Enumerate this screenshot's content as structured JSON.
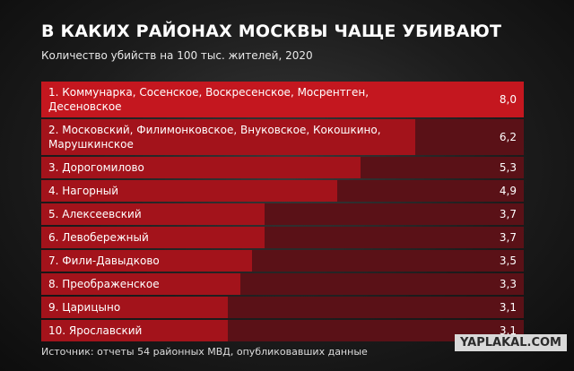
{
  "chart_data": {
    "type": "bar",
    "orientation": "horizontal",
    "title": "В КАКИХ РАЙОНАХ МОСКВЫ ЧАЩЕ УБИВАЮТ",
    "subtitle": "Количество убийств на 100 тыс. жителей, 2020",
    "categories": [
      "1. Коммунарка, Сосенское, Воскресенское, Мосрентген, Десеновское",
      "2. Московский, Филимонковское, Внуковское, Кокошкино, Марушкинское",
      "3. Дорогомилово",
      "4. Нагорный",
      "5. Алексеевский",
      "6. Левобережный",
      "7. Фили-Давыдково",
      "8. Преображенское",
      "9. Царицыно",
      "10. Ярославский"
    ],
    "values": [
      8.0,
      6.2,
      5.3,
      4.9,
      3.7,
      3.7,
      3.5,
      3.3,
      3.1,
      3.1
    ],
    "value_labels": [
      "8,0",
      "6,2",
      "5,3",
      "4,9",
      "3,7",
      "3,7",
      "3,5",
      "3,3",
      "3,1",
      "3,1"
    ],
    "color": "#a3131b",
    "source": "Источник: отчеты 54 районных МВД, опубликовавших данные",
    "watermark": "YAPLAKAL.COM"
  }
}
